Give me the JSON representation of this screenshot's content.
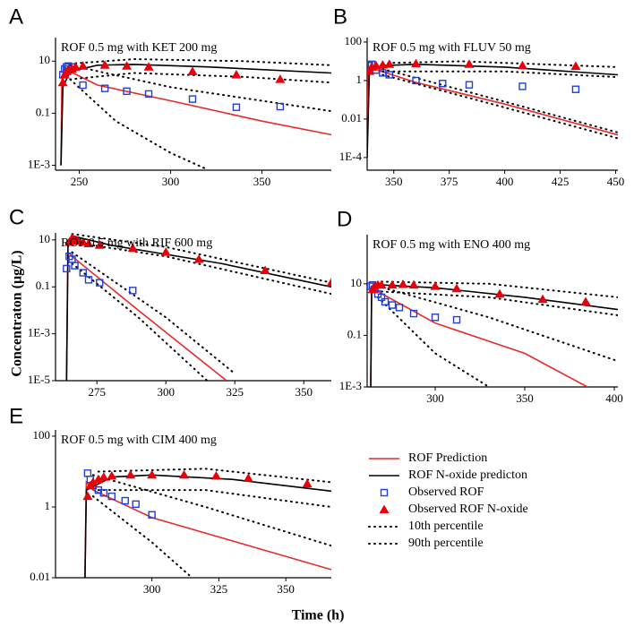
{
  "x_label": "Time (h)",
  "y_label": "Concentraton (µg/L)",
  "legend": [
    {
      "name": "ROF Prediction",
      "color": "#e8292b",
      "style": "line"
    },
    {
      "name": "ROF N-oxide predicton",
      "color": "#000000",
      "style": "line"
    },
    {
      "name": "Observed ROF",
      "color": "#1f3fd6",
      "style": "square"
    },
    {
      "name": "Observed ROF N-oxide",
      "color": "#e8000b",
      "style": "triangle"
    },
    {
      "name": "10th percentile",
      "color": "#000000",
      "style": "dotted"
    },
    {
      "name": "90th percentile",
      "color": "#000000",
      "style": "dotted"
    }
  ],
  "chart_data": [
    {
      "type": "line",
      "label": "A",
      "title": "ROF 0.5 mg with KET 200 mg",
      "log_y": true,
      "xlim": [
        237,
        388
      ],
      "xticks": [
        250,
        300,
        350
      ],
      "ylim": [
        0.00065,
        80
      ],
      "yticks": [
        {
          "value": 0.001,
          "label": "1E-3"
        },
        0.1,
        10
      ],
      "series": [
        {
          "x": [
            240,
            240.5,
            242,
            245,
            260,
            300,
            350,
            388
          ],
          "values": [
            0.001,
            2,
            6,
            4,
            1.2,
            0.3,
            0.05,
            0.015
          ]
        },
        {
          "x": [
            240,
            241,
            245,
            260,
            280,
            320,
            388
          ],
          "values": [
            0.001,
            1,
            4,
            7,
            7.5,
            6,
            3.5
          ]
        },
        {
          "x": [
            241,
            242,
            243,
            244,
            246,
            252,
            264,
            276,
            288,
            312,
            336,
            360
          ],
          "values": [
            3,
            5,
            6,
            6.5,
            6,
            1.2,
            0.9,
            0.7,
            0.55,
            0.35,
            0.17,
            0.18
          ]
        },
        {
          "x": [
            241,
            242,
            243,
            244,
            246,
            248,
            252,
            264,
            276,
            288,
            312,
            336,
            360
          ],
          "values": [
            1.5,
            3,
            4,
            4.5,
            5,
            6,
            6.5,
            7,
            6.5,
            6,
            4,
            3,
            2
          ]
        },
        {
          "x": [
            245,
            280,
            340,
            388,
            null,
            245,
            270,
            300,
            320
          ],
          "values": [
            2,
            3.5,
            2.5,
            1.5,
            null,
            2,
            0.05,
            0.003,
            0.0007
          ]
        },
        {
          "x": [
            245,
            280,
            340,
            388,
            null,
            245,
            300,
            350,
            388
          ],
          "values": [
            8,
            12,
            10,
            7,
            null,
            7,
            1,
            0.3,
            0.12
          ]
        }
      ]
    },
    {
      "type": "line",
      "label": "B",
      "title": "ROF 0.5 mg with FLUV 50 mg",
      "log_y": true,
      "xlim": [
        338,
        451
      ],
      "xticks": [
        350,
        375,
        400,
        425,
        450
      ],
      "ylim": [
        2.2e-05,
        170
      ],
      "yticks": [
        {
          "value": 0.0001,
          "label": "1E-4"
        },
        0.01,
        1,
        100
      ],
      "series": [
        {
          "x": [
            338,
            338.5,
            341,
            360,
            400,
            451
          ],
          "values": [
            0.0001,
            5,
            4,
            0.8,
            0.06,
            0.0015
          ]
        },
        {
          "x": [
            338,
            339,
            345,
            360,
            400,
            451
          ],
          "values": [
            0.0001,
            3,
            6,
            7,
            5,
            2
          ]
        },
        {
          "x": [
            339,
            340,
            342,
            345,
            348,
            360,
            372,
            384,
            408,
            432
          ],
          "values": [
            6,
            7,
            3.5,
            2.5,
            2,
            1,
            0.7,
            0.6,
            0.5,
            0.35
          ]
        },
        {
          "x": [
            339,
            340,
            342,
            345,
            348,
            360,
            384,
            408,
            432
          ],
          "values": [
            3,
            5,
            6,
            6.5,
            7,
            7.5,
            7,
            6,
            5.5
          ]
        },
        {
          "x": [
            345,
            400,
            451,
            null,
            345,
            400,
            451
          ],
          "values": [
            3,
            3,
            1.5,
            null,
            2,
            0.04,
            0.001
          ]
        },
        {
          "x": [
            345,
            380,
            451,
            null,
            345,
            400,
            451
          ],
          "values": [
            8,
            10,
            5,
            null,
            4,
            0.08,
            0.002
          ]
        }
      ]
    },
    {
      "type": "line",
      "label": "C",
      "title": "ROF 0.5 mg with RIF 600 mg",
      "log_y": true,
      "xlim": [
        260,
        360
      ],
      "xticks": [
        275,
        300,
        325,
        350
      ],
      "ylim": [
        1e-05,
        20
      ],
      "yticks": [
        {
          "value": 1e-05,
          "label": "1E-5"
        },
        {
          "value": 0.001,
          "label": "1E-3"
        },
        0.1,
        10
      ],
      "series": [
        {
          "x": [
            264,
            264.5,
            266,
            290,
            322
          ],
          "values": [
            1e-05,
            3,
            2,
            0.01,
            1e-05
          ]
        },
        {
          "x": [
            264,
            264.5,
            266,
            280,
            320,
            360
          ],
          "values": [
            1e-05,
            5,
            15,
            6,
            1,
            0.1
          ]
        },
        {
          "x": [
            264,
            265,
            266,
            267,
            270,
            272,
            276,
            288
          ],
          "values": [
            0.6,
            2,
            1.5,
            0.8,
            0.4,
            0.2,
            0.15,
            0.07
          ]
        },
        {
          "x": [
            265,
            266,
            267,
            268,
            270,
            272,
            276,
            288,
            300,
            312,
            336,
            360
          ],
          "values": [
            8,
            12,
            10,
            9,
            8,
            7,
            6,
            4.5,
            3,
            1.5,
            0.5,
            0.15
          ]
        },
        {
          "x": [
            266,
            300,
            360,
            null,
            266,
            290,
            315
          ],
          "values": [
            8,
            2,
            0.05,
            null,
            1,
            0.005,
            1e-05
          ]
        },
        {
          "x": [
            266,
            300,
            360,
            null,
            266,
            300,
            325
          ],
          "values": [
            18,
            5,
            0.15,
            null,
            3,
            0.005,
            2e-05
          ]
        }
      ]
    },
    {
      "type": "line",
      "label": "D",
      "title": "ROF 0.5 mg with ENO 400 mg",
      "log_y": true,
      "xlim": [
        262,
        402
      ],
      "xticks": [
        300,
        350,
        400
      ],
      "ylim": [
        0.001,
        800
      ],
      "yticks": [
        {
          "value": 0.001,
          "label": "1E-3"
        },
        0.1,
        10
      ],
      "series": [
        {
          "x": [
            264,
            264.5,
            268,
            300,
            350,
            385
          ],
          "values": [
            0.001,
            7,
            5,
            0.3,
            0.02,
            0.001
          ]
        },
        {
          "x": [
            264,
            264.5,
            270,
            300,
            350,
            402
          ],
          "values": [
            0.001,
            5,
            9,
            7,
            3,
            1
          ]
        },
        {
          "x": [
            264,
            265,
            266,
            268,
            270,
            272,
            276,
            280,
            288,
            300,
            312
          ],
          "values": [
            8,
            9,
            6,
            4,
            3,
            2,
            1.5,
            1.2,
            0.7,
            0.5,
            0.4
          ]
        },
        {
          "x": [
            265,
            266,
            268,
            270,
            276,
            282,
            288,
            300,
            312,
            336,
            360,
            384
          ],
          "values": [
            6,
            8,
            9,
            9,
            9,
            9.5,
            9,
            8,
            6.5,
            4,
            2.5,
            2
          ]
        },
        {
          "x": [
            270,
            330,
            402,
            null,
            268,
            300,
            330
          ],
          "values": [
            5,
            3,
            0.6,
            null,
            3,
            0.02,
            0.001
          ]
        },
        {
          "x": [
            270,
            330,
            402,
            null,
            268,
            330,
            402
          ],
          "values": [
            12,
            10,
            3,
            null,
            8,
            0.5,
            0.01
          ]
        }
      ]
    },
    {
      "type": "line",
      "label": "E",
      "title": "ROF 0.5 mg with CIM 400 mg",
      "log_y": true,
      "xlim": [
        264,
        367
      ],
      "xticks": [
        300,
        325,
        350
      ],
      "ylim": [
        0.01,
        150
      ],
      "yticks": [
        0.01,
        1,
        100
      ],
      "series": [
        {
          "x": [
            275,
            275.5,
            278,
            300,
            367
          ],
          "values": [
            0.01,
            5,
            3,
            0.5,
            0.017
          ]
        },
        {
          "x": [
            275,
            275.5,
            285,
            300,
            330,
            367
          ],
          "values": [
            0.01,
            3,
            7,
            8,
            6,
            2.8
          ]
        },
        {
          "x": [
            276,
            277,
            278,
            280,
            282,
            285,
            290,
            294,
            300
          ],
          "values": [
            9,
            6,
            4,
            3,
            2.5,
            2,
            1.5,
            1.2,
            0.6
          ]
        },
        {
          "x": [
            276,
            277,
            278,
            280,
            282,
            285,
            292,
            300,
            312,
            324,
            336,
            358
          ],
          "values": [
            2,
            4,
            5,
            6,
            7,
            7.5,
            8,
            8,
            8,
            7.5,
            6.5,
            4.5
          ]
        },
        {
          "x": [
            280,
            320,
            367,
            null,
            278,
            300,
            315
          ],
          "values": [
            3,
            3,
            1,
            null,
            2,
            0.1,
            0.01
          ]
        },
        {
          "x": [
            280,
            320,
            367,
            null,
            278,
            320,
            367
          ],
          "values": [
            10,
            12,
            5,
            null,
            8,
            1,
            0.08
          ]
        }
      ]
    }
  ]
}
